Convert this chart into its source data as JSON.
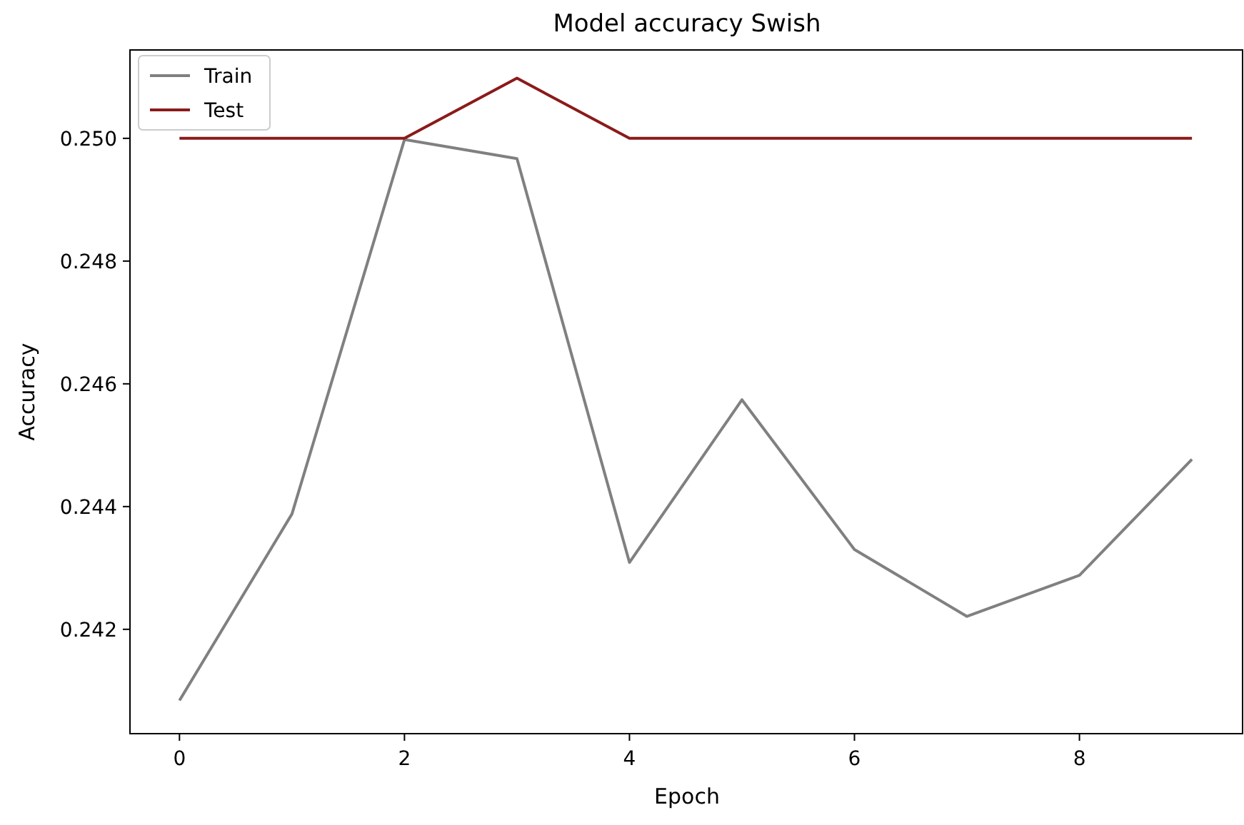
{
  "chart_data": {
    "type": "line",
    "title": "Model accuracy Swish",
    "xlabel": "Epoch",
    "ylabel": "Accuracy",
    "x": [
      0,
      1,
      2,
      3,
      4,
      5,
      6,
      7,
      8,
      9
    ],
    "series": [
      {
        "name": "Train",
        "color": "#808080",
        "values": [
          0.24084,
          0.24388,
          0.24998,
          0.24967,
          0.24309,
          0.24574,
          0.2433,
          0.24221,
          0.24288,
          0.24477
        ]
      },
      {
        "name": "Test",
        "color": "#8b1a1a",
        "values": [
          0.25,
          0.25,
          0.25,
          0.25098,
          0.25,
          0.25,
          0.25,
          0.25,
          0.25,
          0.25
        ]
      }
    ],
    "xlim": [
      -0.44,
      9.45
    ],
    "xticks": [
      0,
      2,
      4,
      6,
      8
    ],
    "ylim": [
      0.2403,
      0.25144
    ],
    "yticks": [
      {
        "value": 0.242,
        "label": "0.242"
      },
      {
        "value": 0.244,
        "label": "0.244"
      },
      {
        "value": 0.246,
        "label": "0.246"
      },
      {
        "value": 0.248,
        "label": "0.248"
      },
      {
        "value": 0.25,
        "label": "0.250"
      }
    ],
    "legend": "top left",
    "grid": false,
    "marker": "none",
    "line_style": "solid"
  }
}
